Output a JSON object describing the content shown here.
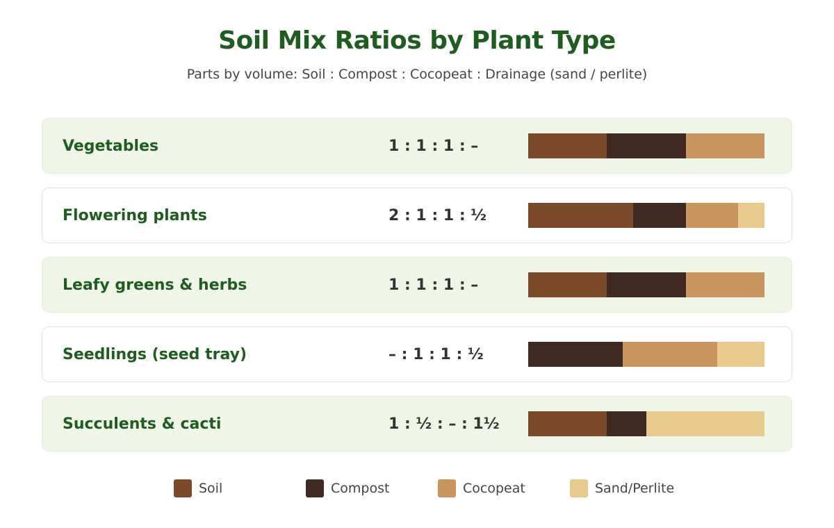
{
  "header": {
    "title": "Soil Mix Ratios by Plant Type",
    "subtitle": "Parts by volume: Soil : Compost : Cocopeat : Drainage (sand / perlite)"
  },
  "rows": [
    {
      "label": "Vegetables",
      "ratio": "1 : 1 : 1 : –",
      "style": "alt"
    },
    {
      "label": "Flowering plants",
      "ratio": "2 : 1 : 1 : ½",
      "style": "plain"
    },
    {
      "label": "Leafy greens & herbs",
      "ratio": "1 : 1 : 1 : –",
      "style": "alt"
    },
    {
      "label": "Seedlings (seed tray)",
      "ratio": "– : 1 : 1 : ½",
      "style": "plain"
    },
    {
      "label": "Succulents & cacti",
      "ratio": "1 : ½ : – : 1½",
      "style": "alt"
    }
  ],
  "legend": [
    {
      "label": "Soil",
      "color": "#7a4a2a"
    },
    {
      "label": "Compost",
      "color": "#3e2a20"
    },
    {
      "label": "Cocopeat",
      "color": "#c8955e"
    },
    {
      "label": "Sand/Perlite",
      "color": "#e8ca8e"
    }
  ],
  "chart_data": {
    "type": "bar",
    "orientation": "horizontal",
    "stacked": true,
    "normalized": true,
    "categories": [
      "Vegetables",
      "Flowering plants",
      "Leafy greens & herbs",
      "Seedlings (seed tray)",
      "Succulents & cacti"
    ],
    "series": [
      {
        "name": "Soil",
        "color": "#7a4a2a",
        "values": [
          1,
          2,
          1,
          0,
          1
        ]
      },
      {
        "name": "Compost",
        "color": "#3e2a20",
        "values": [
          1,
          1,
          1,
          1,
          0.5
        ]
      },
      {
        "name": "Cocopeat",
        "color": "#c8955e",
        "values": [
          1,
          1,
          1,
          1,
          0
        ]
      },
      {
        "name": "Sand/Perlite",
        "color": "#e8ca8e",
        "values": [
          0,
          0.5,
          0,
          0.5,
          1.5
        ]
      }
    ],
    "title": "Soil Mix Ratios by Plant Type",
    "subtitle": "Parts by volume: Soil : Compost : Cocopeat : Drainage (sand / perlite)",
    "legend_position": "bottom",
    "grid": false
  }
}
